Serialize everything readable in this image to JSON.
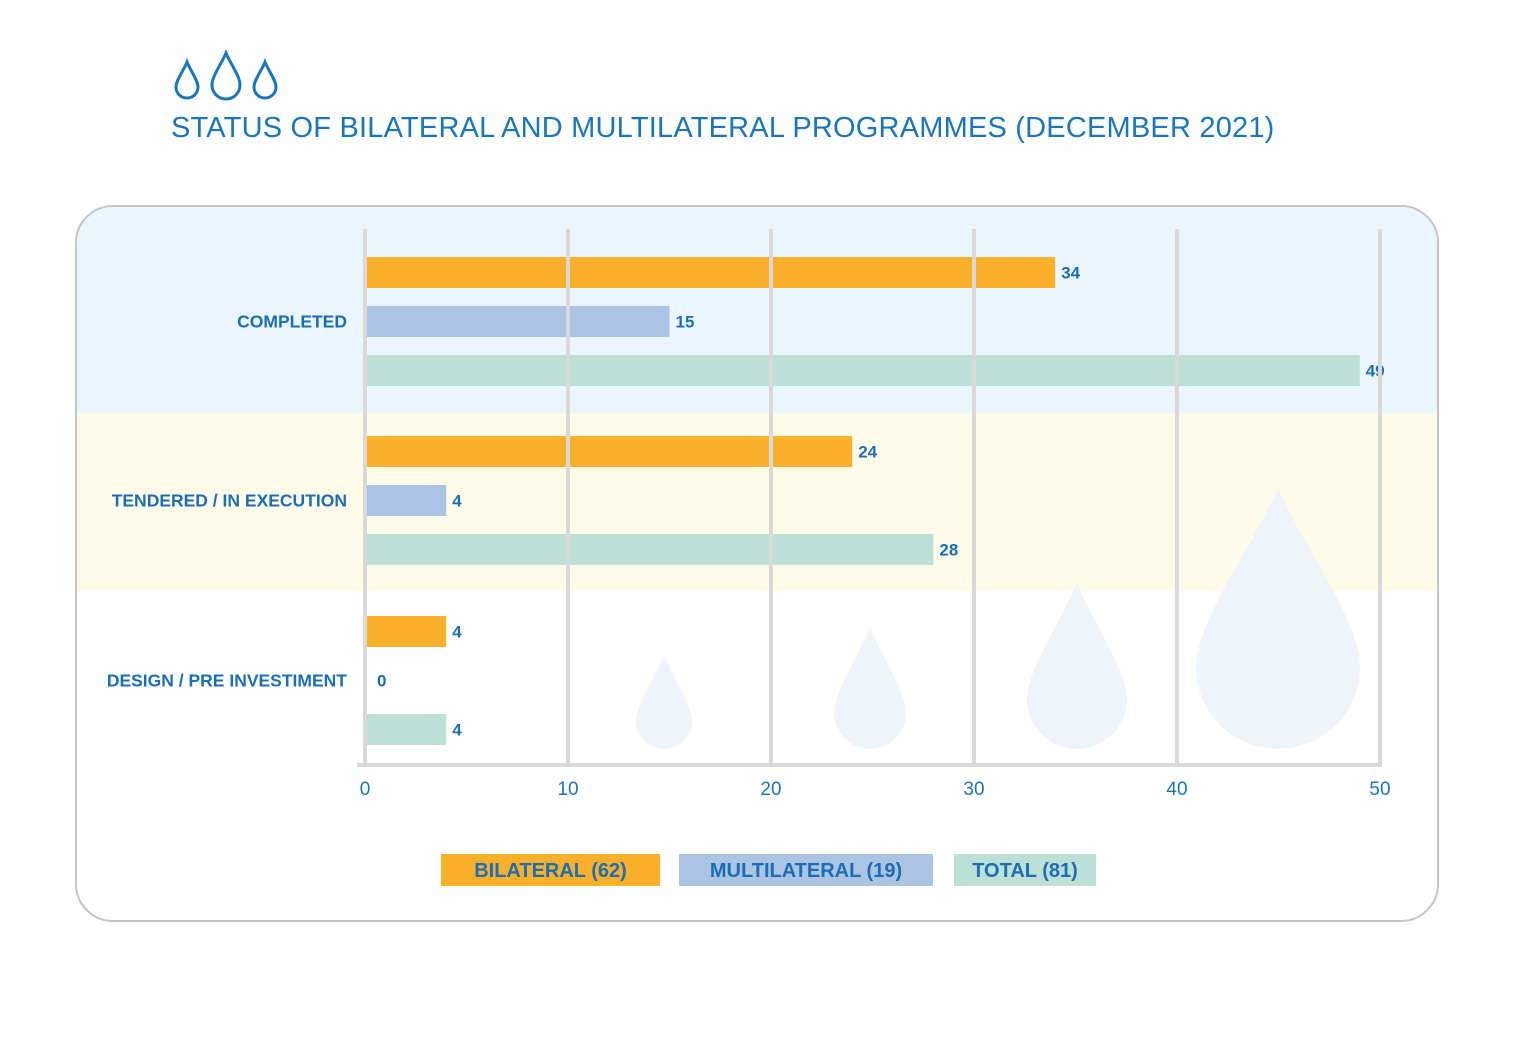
{
  "title": "STATUS OF BILATERAL AND MULTILATERAL PROGRAMMES (DECEMBER 2021)",
  "icons": [
    "water-drop-icon",
    "water-drop-icon",
    "water-drop-icon"
  ],
  "colors": {
    "title": "#1b75bb",
    "labels": "#1b6db4",
    "bilateral": "#fbb02b",
    "multilateral": "#abc4e4",
    "total": "#bcdfd6",
    "band_completed": "#eaf5fc",
    "band_tendered": "#fffbe9",
    "gridline": "#d9d9d9",
    "decor_drop": "#eef4f9"
  },
  "legend": [
    {
      "key": "bilateral",
      "label": "BILATERAL (62)"
    },
    {
      "key": "multilateral",
      "label": "MULTILATERAL (19)"
    },
    {
      "key": "total",
      "label": "TOTAL (81)"
    }
  ],
  "chart_data": {
    "type": "bar",
    "orientation": "horizontal",
    "categories": [
      "COMPLETED",
      "TENDERED / IN EXECUTION",
      "DESIGN / PRE INVESTIMENT"
    ],
    "series": [
      {
        "name": "BILATERAL (62)",
        "key": "bilateral",
        "values": [
          34,
          24,
          4
        ]
      },
      {
        "name": "MULTILATERAL (19)",
        "key": "multilateral",
        "values": [
          15,
          4,
          0
        ]
      },
      {
        "name": "TOTAL (81)",
        "key": "total",
        "values": [
          49,
          28,
          4
        ]
      }
    ],
    "xlim": [
      0,
      50
    ],
    "xticks": [
      0,
      10,
      20,
      30,
      40,
      50
    ],
    "grid": true,
    "legend_position": "bottom",
    "data_labels": true
  }
}
